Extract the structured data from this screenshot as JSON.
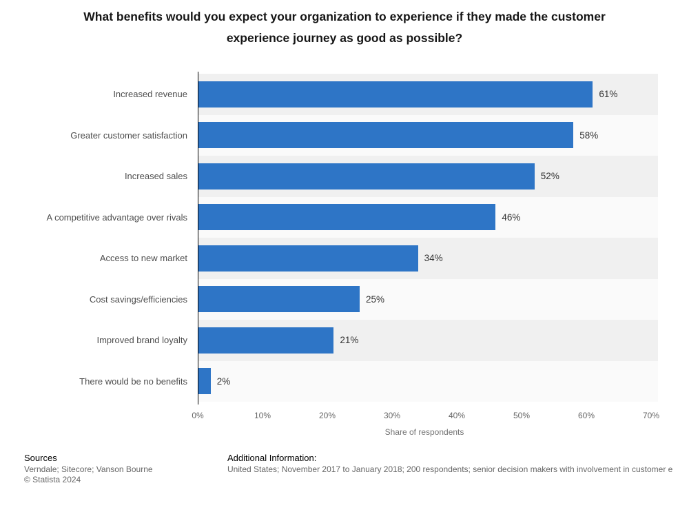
{
  "title": "What benefits would you expect your organization to experience if they made the customer experience journey as good as possible?",
  "chart_data": {
    "type": "bar",
    "orientation": "horizontal",
    "categories": [
      "Increased revenue",
      "Greater customer satisfaction",
      "Increased sales",
      "A competitive advantage over rivals",
      "Access to new market",
      "Cost savings/efficiencies",
      "Improved brand loyalty",
      "There would be no benefits"
    ],
    "values": [
      61,
      58,
      52,
      46,
      34,
      25,
      21,
      2
    ],
    "value_suffix": "%",
    "xlabel": "Share of respondents",
    "xlim": [
      0,
      70
    ],
    "xticks": [
      0,
      10,
      20,
      30,
      40,
      50,
      60,
      70
    ],
    "grid": "row-stripes",
    "legend": "none",
    "bar_color": "#2e75c6",
    "stripe_colors": [
      "#f0f0f0",
      "#fafafa"
    ]
  },
  "footer": {
    "sources_label": "Sources",
    "sources_text": "Verndale; Sitecore; Vanson Bourne",
    "copyright": "© Statista 2024",
    "additional_label": "Additional Information:",
    "additional_text": "United States; November 2017 to January 2018; 200 respondents; senior decision makers with involvement in customer e"
  }
}
